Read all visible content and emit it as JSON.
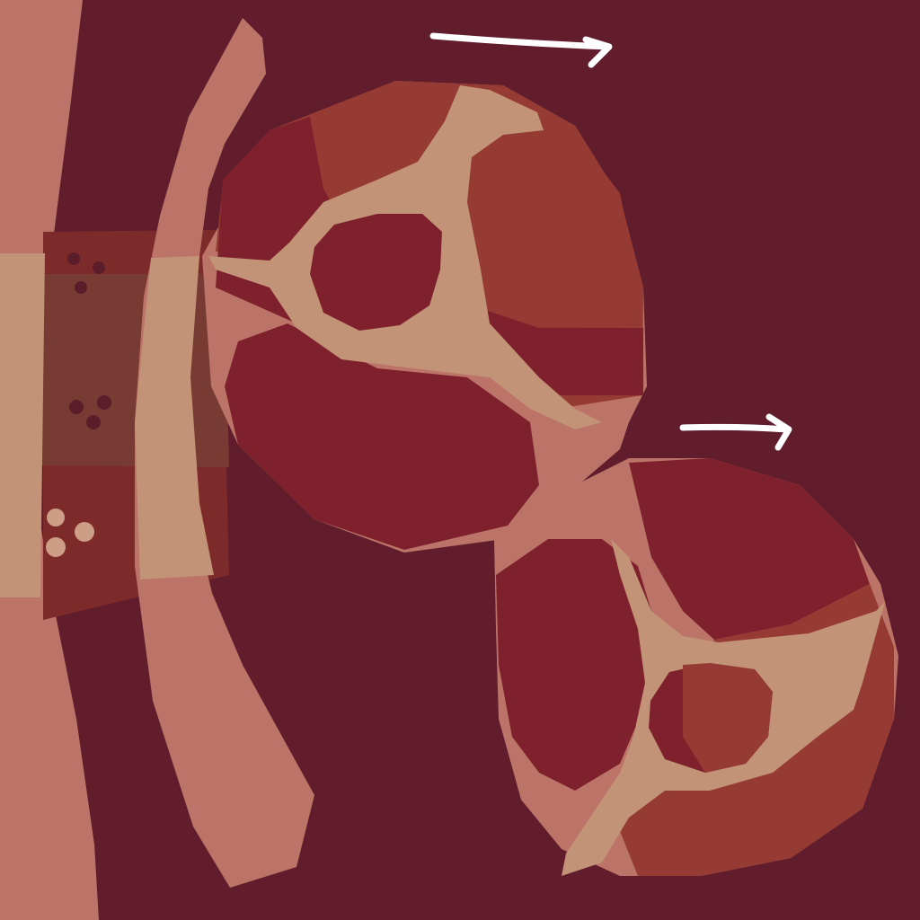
{
  "scene": {
    "description_visible_text": "",
    "colors": {
      "background": "#621d2d",
      "tendon": "#bc7468",
      "fascia": "#c39377",
      "muscle_dark": "#7f212c",
      "muscle_light": "#953b33",
      "band_dark": "#7d2a2a",
      "band_mid": "#773b33",
      "dot_dark": "#5c1d2a",
      "dot_light": "#ce9d85",
      "arrow": "#ffffff"
    },
    "icons": [
      "right-arrow-icon",
      "right-arrow-icon"
    ]
  }
}
